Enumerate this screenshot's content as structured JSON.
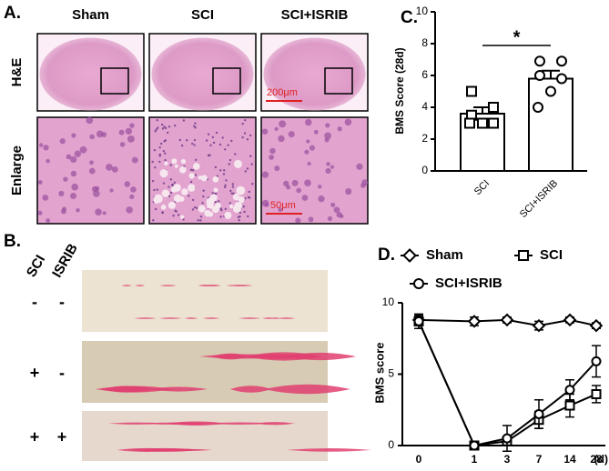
{
  "panels": {
    "a": "A.",
    "b": "B.",
    "c": "C.",
    "d": "D."
  },
  "histology": {
    "columns": [
      "Sham",
      "SCI",
      "SCI+ISRIB"
    ],
    "rows": [
      "H&E",
      "Enlarge"
    ],
    "scale_bars": [
      "200μm",
      "50μm"
    ]
  },
  "gross": {
    "columns": [
      "SCI",
      "ISRIB"
    ],
    "rows": [
      [
        "-",
        "-"
      ],
      [
        "+",
        "-"
      ],
      [
        "+",
        "+"
      ]
    ]
  },
  "chart_data": [
    {
      "type": "bar",
      "y_label": "BMS Score (28d)",
      "categories": [
        "SCI",
        "SCI+ISRIB"
      ],
      "values": [
        3.6,
        5.8
      ],
      "errors": [
        0.4,
        0.5
      ],
      "points": [
        [
          5.0,
          4.0,
          3.5,
          3.0,
          3.0,
          3.0
        ],
        [
          6.9,
          6.9,
          6.0,
          5.8,
          5.0,
          4.0
        ]
      ],
      "markers": [
        "square",
        "circle"
      ],
      "color": "#000000",
      "annotation": "*",
      "ylim": [
        0,
        10
      ],
      "yticks": [
        0,
        2,
        4,
        6,
        8,
        10
      ]
    },
    {
      "type": "line",
      "y_label": "BMS score",
      "x_unit": "(d)",
      "categories": [
        "0",
        "1",
        "3",
        "7",
        "14",
        "28"
      ],
      "series": [
        {
          "name": "Sham",
          "marker": "diamond",
          "color": "#000000",
          "values": [
            8.8,
            8.7,
            8.8,
            8.4,
            8.8,
            8.4
          ],
          "errors": [
            0.3,
            0.3,
            0.2,
            0.3,
            0.2,
            0.2
          ]
        },
        {
          "name": "SCI",
          "marker": "square",
          "color": "#000000",
          "values": [
            8.7,
            0,
            0.3,
            1.8,
            2.8,
            3.6
          ],
          "errors": [
            0.5,
            0,
            0.2,
            0.6,
            0.8,
            0.6
          ]
        },
        {
          "name": "SCI+ISRIB",
          "marker": "circle",
          "color": "#000000",
          "values": [
            8.7,
            0,
            0.5,
            2.2,
            3.9,
            5.9
          ],
          "errors": [
            0.5,
            0,
            0.9,
            1.0,
            0.7,
            1.1
          ]
        }
      ],
      "ylim": [
        0,
        10
      ],
      "yticks": [
        0,
        5,
        10
      ]
    }
  ]
}
